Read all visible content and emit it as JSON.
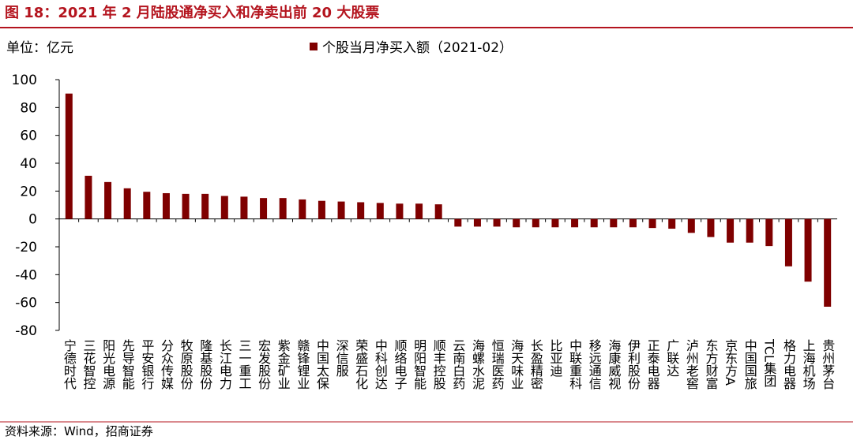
{
  "chart_data": {
    "type": "bar",
    "title": "图 18：2021 年 2 月陆股通净买入和净卖出前 20 大股票",
    "unit_label": "单位：亿元",
    "source": "资料来源：Wind，招商证券",
    "series": [
      {
        "name": "个股当月净买入额（2021-02）",
        "color": "#7f0000",
        "values": [
          90,
          31,
          26.5,
          22,
          19.5,
          18.5,
          18,
          18,
          16.5,
          16,
          15,
          15,
          14,
          13,
          12.5,
          12,
          11.5,
          11,
          11,
          10.5,
          -5.5,
          -5.5,
          -5.5,
          -6,
          -6,
          -6,
          -6,
          -6,
          -6,
          -6,
          -6.5,
          -7,
          -10,
          -13,
          -17,
          -17,
          -19.5,
          -34,
          -45,
          -63
        ]
      }
    ],
    "categories": [
      "宁德时代",
      "三花智控",
      "阳光电源",
      "先导智能",
      "平安银行",
      "分众传媒",
      "牧原股份",
      "隆基股份",
      "长江电力",
      "三一重工",
      "宏发股份",
      "紫金矿业",
      "赣锋锂业",
      "中国太保",
      "深信服",
      "荣盛石化",
      "中科创达",
      "顺络电子",
      "明阳智能",
      "顺丰控股",
      "云南白药",
      "海螺水泥",
      "恒瑞医药",
      "海天味业",
      "长盈精密",
      "比亚迪",
      "中联重科",
      "移远通信",
      "海康威视",
      "伊利股份",
      "正泰电器",
      "广联达",
      "泸州老窖",
      "东方财富",
      "京东方A",
      "中国国旅",
      "TCL集团",
      "格力电器",
      "上海机场",
      "贵州茅台"
    ],
    "ylim": [
      -80,
      100
    ],
    "yticks": [
      -80,
      -60,
      -40,
      -20,
      0,
      20,
      40,
      60,
      80,
      100
    ]
  }
}
